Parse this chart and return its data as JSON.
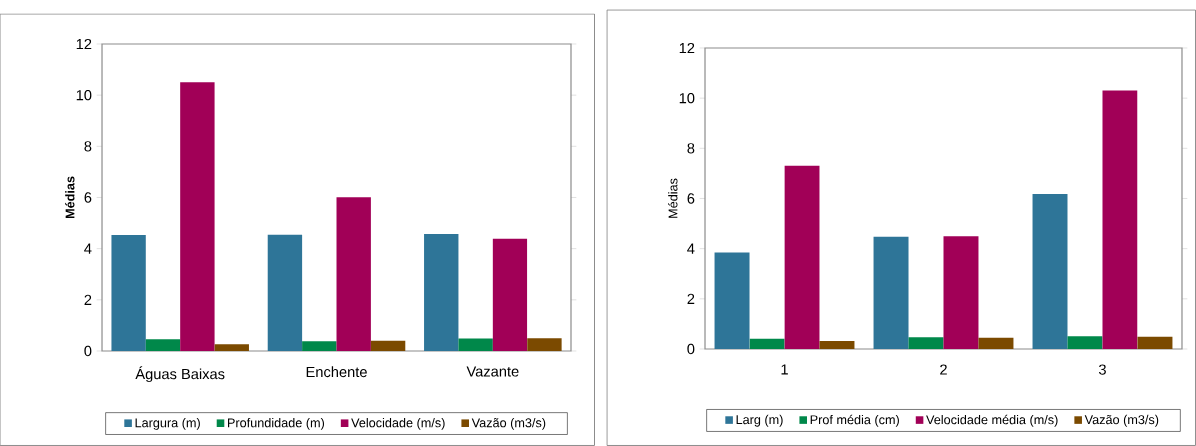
{
  "chart_data": [
    {
      "type": "bar",
      "categories": [
        "Águas Baixas",
        "Enchente",
        "Vazante"
      ],
      "ylabel": "Médias",
      "ylim": [
        0,
        12
      ],
      "yticks": [
        0,
        2,
        4,
        6,
        8,
        10,
        12
      ],
      "legend": "bottom",
      "series": [
        {
          "name": "Largura (m)",
          "color": "#2e7598",
          "values": [
            4.53,
            4.54,
            4.57
          ]
        },
        {
          "name": "Profundidade (m)",
          "color": "#00884a",
          "values": [
            0.46,
            0.38,
            0.49
          ]
        },
        {
          "name": "Velocidade (m/s)",
          "color": "#a10057",
          "values": [
            10.5,
            6.01,
            4.39
          ]
        },
        {
          "name": "Vazão (m3/s)",
          "color": "#7b4a00",
          "values": [
            0.26,
            0.4,
            0.5
          ]
        }
      ]
    },
    {
      "type": "bar",
      "categories": [
        "1",
        "2",
        "3"
      ],
      "ylabel": "Médias",
      "ylim": [
        0,
        12
      ],
      "yticks": [
        0,
        2,
        4,
        6,
        8,
        10,
        12
      ],
      "legend": "bottom",
      "series": [
        {
          "name": "Larg (m)",
          "color": "#2e7598",
          "values": [
            3.85,
            4.47,
            6.18
          ]
        },
        {
          "name": "Prof média (cm)",
          "color": "#00884a",
          "values": [
            0.41,
            0.47,
            0.51
          ]
        },
        {
          "name": "Velocidade média (m/s)",
          "color": "#a10057",
          "values": [
            7.31,
            4.49,
            10.31
          ]
        },
        {
          "name": "Vazão  (m3/s)",
          "color": "#7b4a00",
          "values": [
            0.32,
            0.45,
            0.49
          ]
        }
      ]
    }
  ]
}
